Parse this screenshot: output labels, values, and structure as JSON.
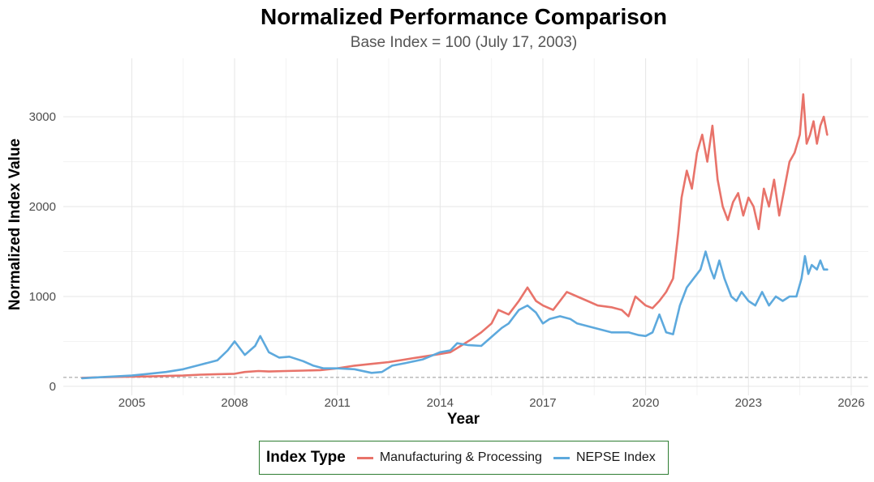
{
  "chart_data": {
    "type": "line",
    "title": "Normalized Performance Comparison",
    "subtitle": "Base Index = 100 (July 17, 2003)",
    "xlabel": "Year",
    "ylabel": "Normalized Index Value",
    "xlim": [
      2003.0,
      2026.5
    ],
    "ylim": [
      -100,
      3650
    ],
    "x_ticks": [
      2005,
      2008,
      2011,
      2014,
      2017,
      2020,
      2023,
      2026
    ],
    "y_ticks": [
      0,
      1000,
      2000,
      3000
    ],
    "grid": true,
    "reference_line": {
      "y": 100,
      "style": "dashed"
    },
    "legend": {
      "title": "Index Type",
      "position": "bottom"
    },
    "series": [
      {
        "name": "Manufacturing & Processing",
        "color": "#E8736A",
        "x": [
          2003.55,
          2004.0,
          2004.5,
          2005.0,
          2005.5,
          2006.0,
          2006.5,
          2007.0,
          2007.5,
          2008.0,
          2008.3,
          2008.7,
          2009.0,
          2009.5,
          2010.0,
          2010.5,
          2011.0,
          2011.5,
          2012.0,
          2012.5,
          2013.0,
          2013.5,
          2014.0,
          2014.3,
          2014.6,
          2014.9,
          2015.2,
          2015.5,
          2015.7,
          2016.0,
          2016.3,
          2016.55,
          2016.8,
          2017.0,
          2017.3,
          2017.5,
          2017.7,
          2018.0,
          2018.3,
          2018.6,
          2019.0,
          2019.3,
          2019.5,
          2019.7,
          2020.0,
          2020.2,
          2020.4,
          2020.6,
          2020.8,
          2020.95,
          2021.05,
          2021.2,
          2021.35,
          2021.5,
          2021.65,
          2021.8,
          2021.95,
          2022.1,
          2022.25,
          2022.4,
          2022.55,
          2022.7,
          2022.85,
          2023.0,
          2023.15,
          2023.3,
          2023.45,
          2023.6,
          2023.75,
          2023.9,
          2024.05,
          2024.2,
          2024.35,
          2024.5,
          2024.6,
          2024.7,
          2024.8,
          2024.9,
          2025.0,
          2025.1,
          2025.2,
          2025.3
        ],
        "y": [
          95,
          100,
          105,
          108,
          110,
          115,
          120,
          130,
          135,
          140,
          160,
          170,
          165,
          170,
          175,
          180,
          200,
          230,
          250,
          270,
          300,
          330,
          360,
          380,
          450,
          520,
          600,
          700,
          850,
          800,
          950,
          1100,
          950,
          900,
          850,
          950,
          1050,
          1000,
          950,
          900,
          880,
          850,
          780,
          1000,
          900,
          870,
          950,
          1050,
          1200,
          1700,
          2100,
          2400,
          2200,
          2600,
          2800,
          2500,
          2900,
          2300,
          2000,
          1850,
          2050,
          2150,
          1900,
          2100,
          2000,
          1750,
          2200,
          2000,
          2300,
          1900,
          2200,
          2500,
          2600,
          2800,
          3250,
          2700,
          2800,
          2950,
          2700,
          2900,
          3000,
          2800
        ]
      },
      {
        "name": "NEPSE Index",
        "color": "#5DA9DD",
        "x": [
          2003.55,
          2004.0,
          2004.5,
          2005.0,
          2005.5,
          2006.0,
          2006.5,
          2007.0,
          2007.5,
          2007.8,
          2008.0,
          2008.3,
          2008.6,
          2008.75,
          2009.0,
          2009.3,
          2009.6,
          2010.0,
          2010.3,
          2010.6,
          2011.0,
          2011.5,
          2012.0,
          2012.3,
          2012.6,
          2013.0,
          2013.5,
          2014.0,
          2014.3,
          2014.5,
          2014.8,
          2015.2,
          2015.5,
          2015.8,
          2016.0,
          2016.3,
          2016.55,
          2016.8,
          2017.0,
          2017.2,
          2017.5,
          2017.8,
          2018.0,
          2018.5,
          2019.0,
          2019.5,
          2019.8,
          2020.0,
          2020.2,
          2020.4,
          2020.6,
          2020.8,
          2021.0,
          2021.2,
          2021.4,
          2021.6,
          2021.75,
          2021.9,
          2022.0,
          2022.15,
          2022.3,
          2022.5,
          2022.65,
          2022.8,
          2023.0,
          2023.2,
          2023.4,
          2023.6,
          2023.8,
          2024.0,
          2024.2,
          2024.4,
          2024.55,
          2024.65,
          2024.75,
          2024.85,
          2025.0,
          2025.1,
          2025.2,
          2025.3
        ],
        "y": [
          90,
          100,
          110,
          120,
          140,
          160,
          190,
          240,
          290,
          400,
          500,
          350,
          450,
          560,
          380,
          320,
          330,
          280,
          230,
          200,
          200,
          190,
          150,
          160,
          230,
          260,
          300,
          380,
          400,
          480,
          460,
          450,
          550,
          650,
          700,
          850,
          900,
          820,
          700,
          750,
          780,
          750,
          700,
          650,
          600,
          600,
          570,
          560,
          600,
          800,
          600,
          580,
          900,
          1100,
          1200,
          1300,
          1500,
          1300,
          1200,
          1400,
          1200,
          1000,
          950,
          1050,
          950,
          900,
          1050,
          900,
          1000,
          950,
          1000,
          1000,
          1200,
          1450,
          1250,
          1350,
          1300,
          1400,
          1300,
          1300
        ]
      }
    ]
  }
}
